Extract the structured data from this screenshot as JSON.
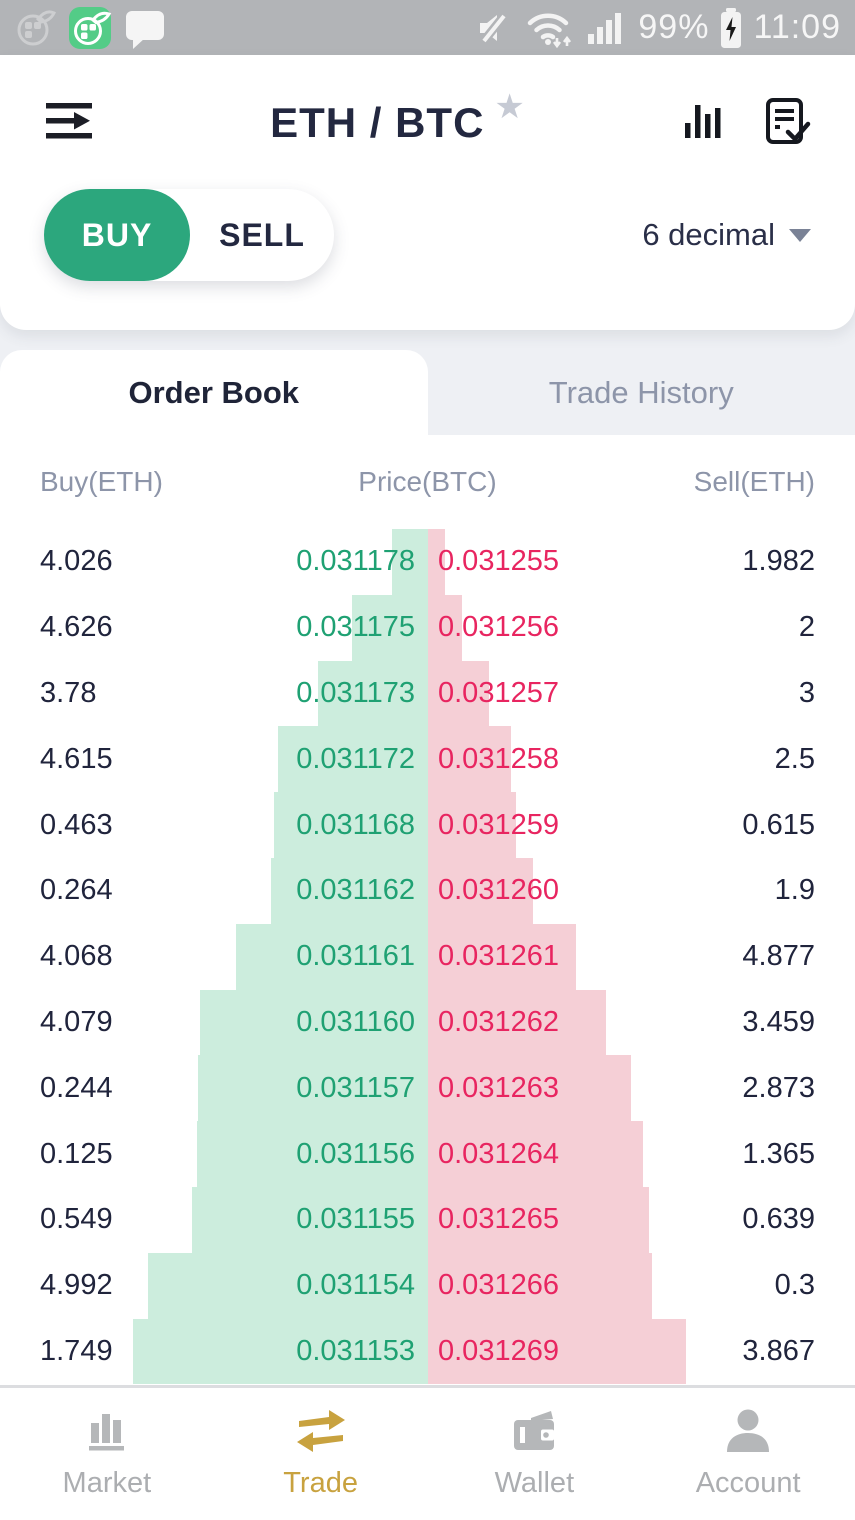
{
  "status_bar": {
    "time": "11:09",
    "battery": "99%",
    "left_icons": [
      "ghost-app-icon",
      "launcher-app-icon",
      "chat-bubble-icon"
    ],
    "right_icons": [
      "muted-speaker-icon",
      "wifi-icon",
      "signal-bars-icon",
      "battery-icon"
    ]
  },
  "header": {
    "title": "ETH / BTC",
    "favorite_icon": "star-icon",
    "action_icons": [
      "kline-chart-icon",
      "open-orders-icon"
    ]
  },
  "trade_controls": {
    "buy_label": "BUY",
    "sell_label": "SELL",
    "active_side": "BUY",
    "decimal_label": "6 decimal"
  },
  "tabs": [
    {
      "label": "Order Book",
      "active": true
    },
    {
      "label": "Trade History",
      "active": false
    }
  ],
  "order_book": {
    "columns": [
      "Buy(ETH)",
      "Price(BTC)",
      "Sell(ETH)"
    ],
    "rows": [
      {
        "buy_volume": "4.026",
        "buy_price": "0.031178",
        "sell_price": "0.031255",
        "sell_volume": "1.982"
      },
      {
        "buy_volume": "4.626",
        "buy_price": "0.031175",
        "sell_price": "0.031256",
        "sell_volume": "2"
      },
      {
        "buy_volume": "3.78",
        "buy_price": "0.031173",
        "sell_price": "0.031257",
        "sell_volume": "3"
      },
      {
        "buy_volume": "4.615",
        "buy_price": "0.031172",
        "sell_price": "0.031258",
        "sell_volume": "2.5"
      },
      {
        "buy_volume": "0.463",
        "buy_price": "0.031168",
        "sell_price": "0.031259",
        "sell_volume": "0.615"
      },
      {
        "buy_volume": "0.264",
        "buy_price": "0.031162",
        "sell_price": "0.031260",
        "sell_volume": "1.9"
      },
      {
        "buy_volume": "4.068",
        "buy_price": "0.031161",
        "sell_price": "0.031261",
        "sell_volume": "4.877"
      },
      {
        "buy_volume": "4.079",
        "buy_price": "0.031160",
        "sell_price": "0.031262",
        "sell_volume": "3.459"
      },
      {
        "buy_volume": "0.244",
        "buy_price": "0.031157",
        "sell_price": "0.031263",
        "sell_volume": "2.873"
      },
      {
        "buy_volume": "0.125",
        "buy_price": "0.031156",
        "sell_price": "0.031264",
        "sell_volume": "1.365"
      },
      {
        "buy_volume": "0.549",
        "buy_price": "0.031155",
        "sell_price": "0.031265",
        "sell_volume": "0.639"
      },
      {
        "buy_volume": "4.992",
        "buy_price": "0.031154",
        "sell_price": "0.031266",
        "sell_volume": "0.3"
      },
      {
        "buy_volume": "1.749",
        "buy_price": "0.031153",
        "sell_price": "0.031269",
        "sell_volume": "3.867"
      }
    ]
  },
  "bottom_nav": {
    "items": [
      {
        "label": "Market",
        "icon": "market-bars-icon",
        "active": false
      },
      {
        "label": "Trade",
        "icon": "trade-arrows-icon",
        "active": true
      },
      {
        "label": "Wallet",
        "icon": "wallet-icon",
        "active": false
      },
      {
        "label": "Account",
        "icon": "account-person-icon",
        "active": false
      }
    ]
  },
  "colors": {
    "buy_price_text": "#1fa173",
    "sell_price_text": "#e82560",
    "buy_depth_bar": "#cceddd",
    "sell_depth_bar": "#f5cfd6",
    "buy_button_bg": "#2ca77d",
    "active_nav_gold": "#c8a23f",
    "navy_text": "#252a42",
    "muted_text": "#8d95a9"
  }
}
